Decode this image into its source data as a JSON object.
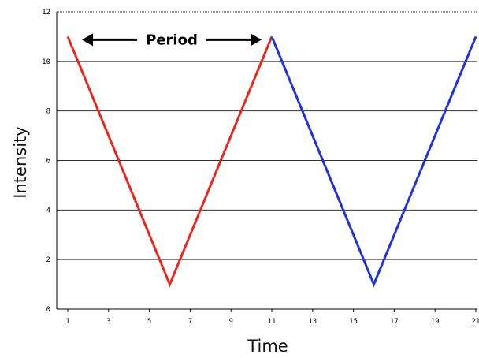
{
  "chart_data": {
    "type": "line",
    "xlabel": "Time",
    "ylabel": "Intensity",
    "xlim": [
      1,
      21
    ],
    "ylim": [
      0,
      12
    ],
    "x_ticks": [
      1,
      3,
      5,
      7,
      9,
      11,
      13,
      15,
      17,
      19,
      21
    ],
    "y_ticks": [
      0,
      2,
      4,
      6,
      8,
      10,
      12
    ],
    "grid": "horizontal",
    "series": [
      {
        "color": "#e8281e",
        "points": [
          [
            1,
            11
          ],
          [
            6,
            1
          ],
          [
            11,
            11
          ]
        ]
      },
      {
        "color": "#2233d4",
        "points": [
          [
            11,
            11
          ],
          [
            16,
            1
          ],
          [
            21,
            11
          ]
        ]
      }
    ],
    "annotations": [
      {
        "text": "Period",
        "from_x": 1,
        "to_x": 11,
        "y": 11
      }
    ]
  }
}
